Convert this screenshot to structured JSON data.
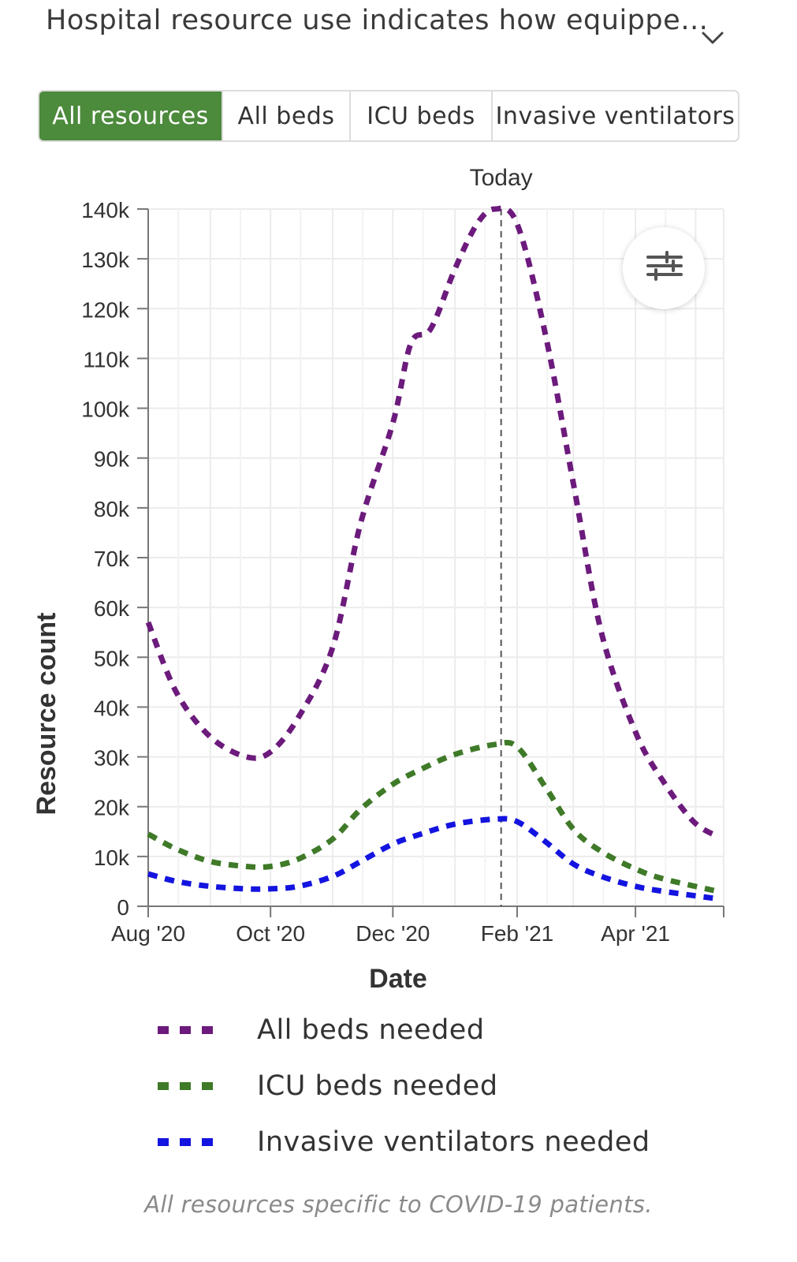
{
  "header": {
    "title": "Hospital resource use indicates how equippe…"
  },
  "tabs": [
    {
      "label": "All resources",
      "active": true
    },
    {
      "label": "All beds",
      "active": false
    },
    {
      "label": "ICU beds",
      "active": false
    },
    {
      "label": "Invasive ventilators",
      "active": false
    }
  ],
  "chart_data": {
    "type": "line",
    "xlabel": "Date",
    "ylabel": "Resource count",
    "ylim": [
      0,
      140000
    ],
    "yticks": [
      {
        "value": 0,
        "label": "0"
      },
      {
        "value": 10000,
        "label": "10k"
      },
      {
        "value": 20000,
        "label": "20k"
      },
      {
        "value": 30000,
        "label": "30k"
      },
      {
        "value": 40000,
        "label": "40k"
      },
      {
        "value": 50000,
        "label": "50k"
      },
      {
        "value": 60000,
        "label": "60k"
      },
      {
        "value": 70000,
        "label": "70k"
      },
      {
        "value": 80000,
        "label": "80k"
      },
      {
        "value": 90000,
        "label": "90k"
      },
      {
        "value": 100000,
        "label": "100k"
      },
      {
        "value": 110000,
        "label": "110k"
      },
      {
        "value": 120000,
        "label": "120k"
      },
      {
        "value": 130000,
        "label": "130k"
      },
      {
        "value": 140000,
        "label": "140k"
      }
    ],
    "xlim": [
      "2020-08-01",
      "2021-05-15"
    ],
    "xticks": [
      {
        "date": "2020-08-01",
        "label": "Aug '20"
      },
      {
        "date": "2020-10-01",
        "label": "Oct '20"
      },
      {
        "date": "2020-12-01",
        "label": "Dec '20"
      },
      {
        "date": "2021-02-01",
        "label": "Feb '21"
      },
      {
        "date": "2021-04-01",
        "label": "Apr '21"
      }
    ],
    "today": {
      "date": "2021-01-24",
      "label": "Today"
    },
    "grid": true,
    "legend_position": "bottom",
    "series": [
      {
        "name": "All beds needed",
        "color": "#6c1a7c",
        "points": [
          [
            "2020-08-01",
            57000
          ],
          [
            "2020-08-15",
            43000
          ],
          [
            "2020-09-01",
            34000
          ],
          [
            "2020-09-19",
            30000
          ],
          [
            "2020-10-01",
            31000
          ],
          [
            "2020-10-15",
            38000
          ],
          [
            "2020-11-01",
            52000
          ],
          [
            "2020-11-15",
            77000
          ],
          [
            "2020-12-01",
            97000
          ],
          [
            "2020-12-10",
            113000
          ],
          [
            "2020-12-20",
            116000
          ],
          [
            "2021-01-01",
            128000
          ],
          [
            "2021-01-12",
            137000
          ],
          [
            "2021-01-21",
            140000
          ],
          [
            "2021-02-01",
            137000
          ],
          [
            "2021-02-15",
            115000
          ],
          [
            "2021-03-01",
            85000
          ],
          [
            "2021-03-15",
            55000
          ],
          [
            "2021-04-01",
            35000
          ],
          [
            "2021-04-15",
            25000
          ],
          [
            "2021-04-30",
            17000
          ],
          [
            "2021-05-12",
            14000
          ]
        ]
      },
      {
        "name": "ICU beds needed",
        "color": "#3f7a28",
        "points": [
          [
            "2020-08-01",
            14500
          ],
          [
            "2020-08-15",
            11500
          ],
          [
            "2020-09-01",
            9000
          ],
          [
            "2020-09-19",
            8000
          ],
          [
            "2020-10-01",
            8000
          ],
          [
            "2020-10-15",
            9500
          ],
          [
            "2020-11-01",
            13500
          ],
          [
            "2020-11-15",
            19500
          ],
          [
            "2020-12-01",
            24500
          ],
          [
            "2020-12-15",
            27500
          ],
          [
            "2021-01-01",
            30500
          ],
          [
            "2021-01-21",
            32500
          ],
          [
            "2021-02-01",
            32000
          ],
          [
            "2021-02-15",
            24000
          ],
          [
            "2021-03-01",
            15500
          ],
          [
            "2021-03-15",
            11000
          ],
          [
            "2021-04-01",
            7500
          ],
          [
            "2021-04-15",
            5500
          ],
          [
            "2021-05-12",
            3000
          ]
        ]
      },
      {
        "name": "Invasive ventilators needed",
        "color": "#1414e0",
        "points": [
          [
            "2020-08-01",
            6500
          ],
          [
            "2020-08-15",
            5000
          ],
          [
            "2020-09-01",
            4000
          ],
          [
            "2020-09-19",
            3500
          ],
          [
            "2020-10-01",
            3500
          ],
          [
            "2020-10-15",
            4000
          ],
          [
            "2020-11-01",
            6000
          ],
          [
            "2020-11-15",
            9000
          ],
          [
            "2020-12-01",
            12500
          ],
          [
            "2020-12-15",
            14500
          ],
          [
            "2021-01-01",
            16500
          ],
          [
            "2021-01-21",
            17500
          ],
          [
            "2021-02-01",
            17000
          ],
          [
            "2021-02-15",
            13000
          ],
          [
            "2021-03-01",
            8500
          ],
          [
            "2021-03-15",
            6000
          ],
          [
            "2021-04-01",
            4000
          ],
          [
            "2021-04-15",
            3000
          ],
          [
            "2021-05-12",
            1500
          ]
        ]
      }
    ]
  },
  "legend": [
    {
      "label": "All beds needed",
      "color": "#6c1a7c"
    },
    {
      "label": "ICU beds needed",
      "color": "#3f7a28"
    },
    {
      "label": "Invasive ventilators needed",
      "color": "#1414e0"
    }
  ],
  "footnote": "All resources specific to COVID-19 patients.",
  "icons": {
    "header_toggle": "chevron-down-icon",
    "chart_settings": "sliders-icon"
  }
}
